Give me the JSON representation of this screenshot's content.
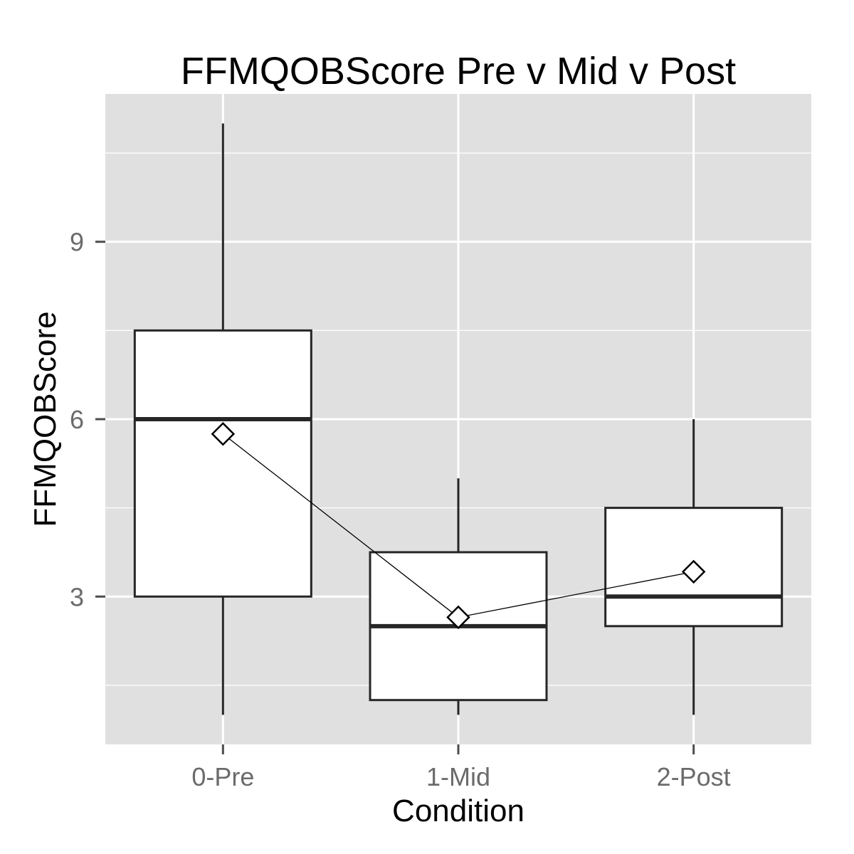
{
  "chart_data": {
    "type": "box",
    "title": "FFMQOBScore Pre v Mid v Post",
    "xlabel": "Condition",
    "ylabel": "FFMQOBScore",
    "categories": [
      "0-Pre",
      "1-Mid",
      "2-Post"
    ],
    "y_ticks": [
      3,
      6,
      9
    ],
    "ylim": [
      0.5,
      11.5
    ],
    "grid": true,
    "colors": {
      "panel": "#e0e0e0",
      "grid": "#ffffff",
      "box_fill": "#ffffff",
      "box_stroke": "#262626",
      "tick": "#4d4d4d"
    },
    "boxes": [
      {
        "category": "0-Pre",
        "whisker_low": 1,
        "q1": 3,
        "median": 6,
        "q3": 7.5,
        "whisker_high": 11
      },
      {
        "category": "1-Mid",
        "whisker_low": 1,
        "q1": 1.25,
        "median": 2.5,
        "q3": 3.75,
        "whisker_high": 5
      },
      {
        "category": "2-Post",
        "whisker_low": 1,
        "q1": 2.5,
        "median": 3,
        "q3": 4.5,
        "whisker_high": 6
      }
    ],
    "means": {
      "marker": "diamond",
      "connected": true,
      "values": [
        5.75,
        2.65,
        3.42
      ]
    }
  }
}
